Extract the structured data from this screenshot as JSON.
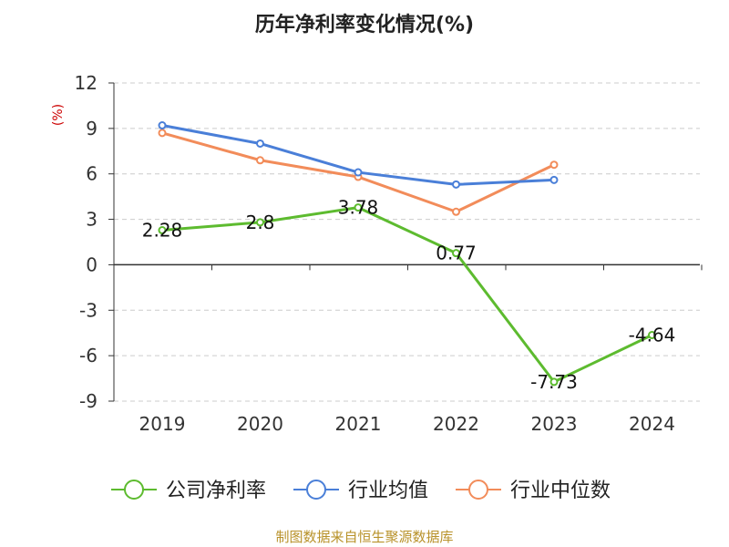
{
  "chart_data": {
    "type": "line",
    "title": "历年净利率变化情况(%)",
    "ylabel": "(%)",
    "categories": [
      "2019",
      "2020",
      "2021",
      "2022",
      "2023",
      "2024"
    ],
    "ylim": [
      -9,
      12
    ],
    "yticks": [
      12,
      9,
      6,
      3,
      0,
      -3,
      -6,
      -9
    ],
    "grid": true,
    "legend_position": "bottom",
    "series": [
      {
        "name": "公司净利率",
        "color": "#5dbb2f",
        "values": [
          2.28,
          2.8,
          3.78,
          0.77,
          -7.73,
          -4.64
        ],
        "labels": [
          "2.28",
          "2.8",
          "3.78",
          "0.77",
          "-7.73",
          "-4.64"
        ]
      },
      {
        "name": "行业均值",
        "color": "#4a7fd8",
        "values": [
          9.2,
          8.0,
          6.1,
          5.3,
          5.6,
          null
        ]
      },
      {
        "name": "行业中位数",
        "color": "#f28c5a",
        "values": [
          8.7,
          6.9,
          5.8,
          3.5,
          6.6,
          null
        ]
      }
    ],
    "source": "制图数据来自恒生聚源数据库"
  },
  "colors": {
    "title": "#222222",
    "unit_label": "#cc0000",
    "source_text": "#b8922a",
    "grid": "#cccccc",
    "axis": "#333333"
  }
}
